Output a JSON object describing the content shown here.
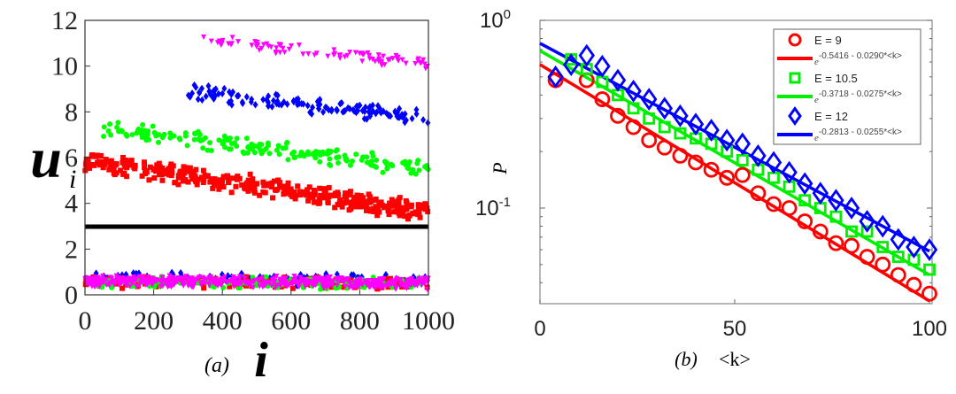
{
  "chart_data": [
    {
      "type": "scatter",
      "panel_label": "(a)",
      "xlabel": "i",
      "ylabel": "u",
      "ylabel_sub": "i",
      "xlim": [
        0,
        1000
      ],
      "ylim": [
        0,
        12
      ],
      "xticks": [
        "0",
        "200",
        "400",
        "600",
        "800",
        "1000"
      ],
      "xtick_values": [
        0,
        200,
        400,
        600,
        800,
        1000
      ],
      "yticks": [
        "0",
        "2",
        "4",
        "6",
        "8",
        "10",
        "12"
      ],
      "ytick_values": [
        0,
        2,
        4,
        6,
        8,
        10,
        12
      ],
      "threshold_line": 3,
      "note": "Dense scatter (~1000 pts per series) summarized by approximate trend and spread",
      "series": [
        {
          "name": "red-squares",
          "color": "#ff0000",
          "marker": "square",
          "i_range": [
            0,
            1000
          ],
          "trend": [
            5.9,
            3.6
          ],
          "spread": 0.5,
          "count": 420
        },
        {
          "name": "green-circles",
          "color": "#00ff00",
          "marker": "circle",
          "i_range": [
            50,
            1000
          ],
          "trend": [
            7.3,
            5.5
          ],
          "spread": 0.45,
          "count": 190
        },
        {
          "name": "blue-diamonds",
          "color": "#0000ff",
          "marker": "diamond",
          "i_range": [
            300,
            1000
          ],
          "trend": [
            8.9,
            7.7
          ],
          "spread": 0.4,
          "count": 140
        },
        {
          "name": "magenta-triangles",
          "color": "#ff00ff",
          "marker": "triangle-down",
          "i_range": [
            340,
            1000
          ],
          "trend": [
            11.1,
            10.1
          ],
          "spread": 0.3,
          "count": 90
        },
        {
          "name": "lower-blue",
          "color": "#0000ff",
          "marker": "diamond",
          "i_range": [
            0,
            1000
          ],
          "trend": [
            0.75,
            0.6
          ],
          "spread": 0.3,
          "count": 150
        },
        {
          "name": "lower-red",
          "color": "#ff0000",
          "marker": "square",
          "i_range": [
            0,
            1000
          ],
          "trend": [
            0.55,
            0.5
          ],
          "spread": 0.3,
          "count": 150
        },
        {
          "name": "lower-green",
          "color": "#00ff00",
          "marker": "circle",
          "i_range": [
            0,
            1000
          ],
          "trend": [
            0.55,
            0.5
          ],
          "spread": 0.3,
          "count": 150
        },
        {
          "name": "lower-magenta",
          "color": "#ff00ff",
          "marker": "triangle-down",
          "i_range": [
            0,
            1000
          ],
          "trend": [
            0.6,
            0.5
          ],
          "spread": 0.3,
          "count": 500
        }
      ]
    },
    {
      "type": "scatter",
      "panel_label": "(b)",
      "xlabel": "<k>",
      "ylabel": "P",
      "xlim": [
        0,
        100
      ],
      "ylim": [
        0.031,
        1
      ],
      "yscale": "log",
      "xticks": [
        "0",
        "50",
        "100"
      ],
      "xtick_values": [
        0,
        50,
        100
      ],
      "yticks": [
        {
          "base": "10",
          "exp": "0",
          "value": 1
        },
        {
          "base": "10",
          "exp": "-1",
          "value": 0.1
        }
      ],
      "legend_position": "top-right",
      "series": [
        {
          "label": "E = 9",
          "color": "#ff0000",
          "marker": "circle",
          "k": [
            4,
            12,
            16,
            20,
            24,
            28,
            32,
            36,
            40,
            44,
            48,
            52,
            56,
            60,
            64,
            68,
            72,
            76,
            80,
            84,
            88,
            92,
            96,
            100
          ],
          "P": [
            0.48,
            0.48,
            0.38,
            0.31,
            0.27,
            0.23,
            0.21,
            0.19,
            0.175,
            0.16,
            0.145,
            0.15,
            0.12,
            0.105,
            0.1,
            0.085,
            0.075,
            0.065,
            0.063,
            0.055,
            0.05,
            0.044,
            0.039,
            0.035
          ],
          "fit_label": "e",
          "fit_exp": "-0.5416 - 0.0290*<k>",
          "fit_a": -0.5416,
          "fit_b": -0.029
        },
        {
          "label": "E = 10.5",
          "color": "#00ee00",
          "marker": "square",
          "k": [
            8,
            12,
            16,
            20,
            24,
            28,
            32,
            36,
            40,
            44,
            48,
            52,
            56,
            60,
            64,
            68,
            72,
            76,
            80,
            84,
            88,
            92,
            96,
            100
          ],
          "P": [
            0.62,
            0.55,
            0.47,
            0.4,
            0.34,
            0.3,
            0.27,
            0.25,
            0.235,
            0.22,
            0.2,
            0.18,
            0.16,
            0.145,
            0.13,
            0.11,
            0.1,
            0.09,
            0.075,
            0.075,
            0.062,
            0.055,
            0.053,
            0.047
          ],
          "fit_label": "e",
          "fit_exp": "-0.3718 - 0.0275*<k>",
          "fit_a": -0.3718,
          "fit_b": -0.0275
        },
        {
          "label": "E = 12",
          "color": "#0000ff",
          "marker": "diamond",
          "k": [
            4,
            8,
            12,
            16,
            20,
            24,
            28,
            32,
            36,
            40,
            44,
            48,
            52,
            56,
            60,
            64,
            68,
            72,
            76,
            80,
            84,
            88,
            92,
            96,
            100
          ],
          "P": [
            0.5,
            0.58,
            0.65,
            0.57,
            0.48,
            0.42,
            0.38,
            0.34,
            0.31,
            0.28,
            0.26,
            0.23,
            0.22,
            0.19,
            0.175,
            0.155,
            0.135,
            0.12,
            0.11,
            0.1,
            0.085,
            0.08,
            0.068,
            0.062,
            0.06
          ],
          "fit_label": "e",
          "fit_exp": "-0.2813 - 0.0255*<k>",
          "fit_a": -0.2813,
          "fit_b": -0.0255
        }
      ]
    }
  ]
}
